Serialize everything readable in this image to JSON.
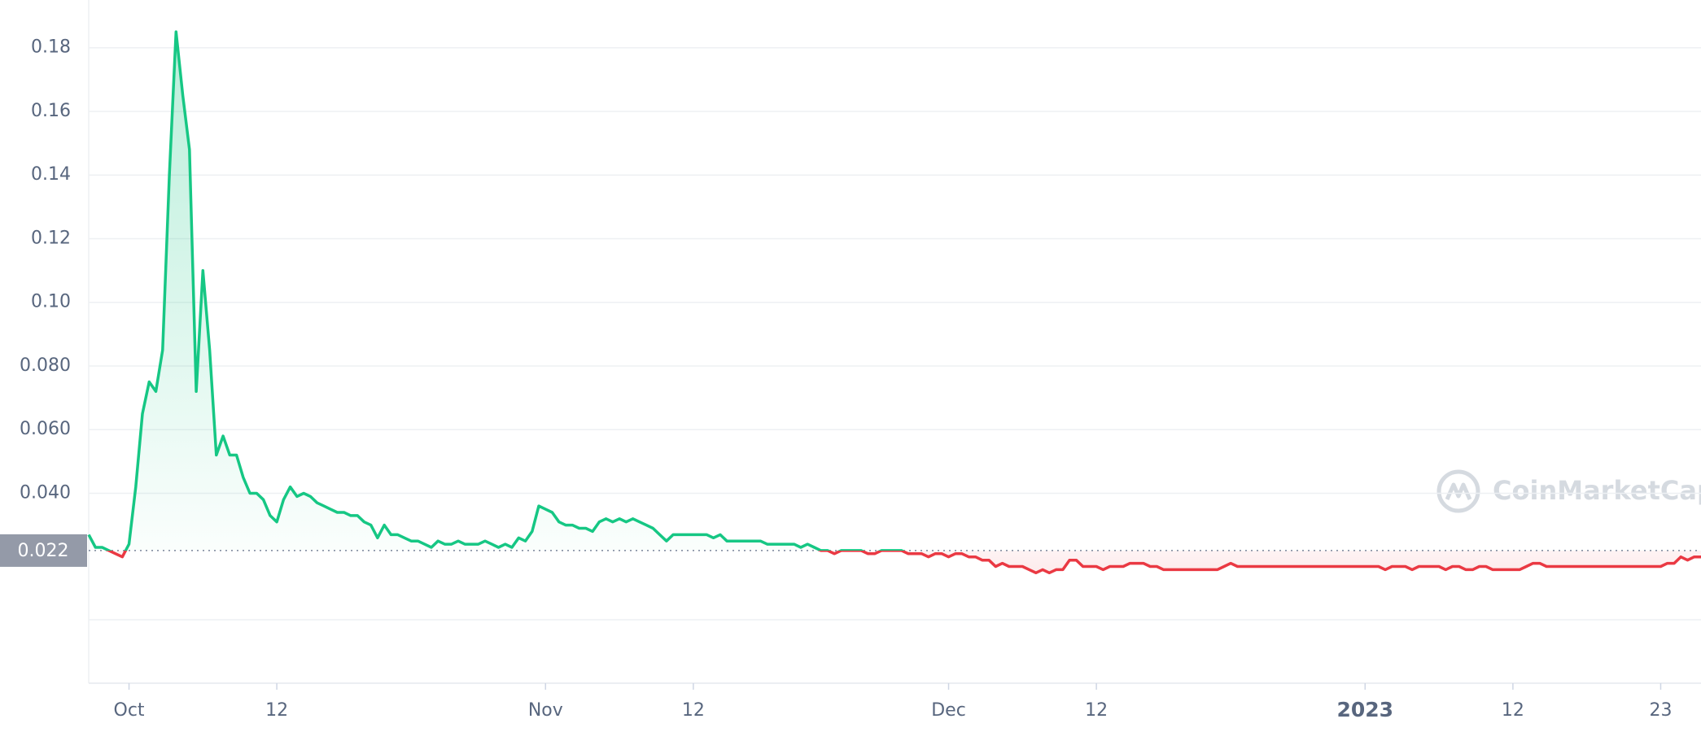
{
  "chart_data": {
    "type": "line",
    "up_color": "#16c784",
    "down_color": "#ea3943",
    "baseline": 0.022,
    "watermark": "CoinMarketCap",
    "xlim": [
      0,
      240
    ],
    "xticks": [
      {
        "value": 6,
        "label": "Oct"
      },
      {
        "value": 28,
        "label": "12"
      },
      {
        "value": 68,
        "label": "Nov"
      },
      {
        "value": 90,
        "label": "12"
      },
      {
        "value": 128,
        "label": "Dec"
      },
      {
        "value": 150,
        "label": "12"
      },
      {
        "value": 190,
        "label": "2023",
        "bold": true
      },
      {
        "value": 212,
        "label": "12"
      },
      {
        "value": 234,
        "label": "23"
      }
    ],
    "ylim": [
      0,
      0.195
    ],
    "yticks": [
      {
        "value": 0.04,
        "label": "0.040"
      },
      {
        "value": 0.06,
        "label": "0.060"
      },
      {
        "value": 0.08,
        "label": "0.080"
      },
      {
        "value": 0.1,
        "label": "0.10"
      },
      0.12,
      0.14,
      0.16,
      0.18
    ],
    "grid": true,
    "values": [
      0.027,
      0.023,
      0.023,
      0.022,
      0.021,
      0.02,
      0.024,
      0.042,
      0.065,
      0.075,
      0.072,
      0.085,
      0.14,
      0.185,
      0.165,
      0.148,
      0.072,
      0.11,
      0.085,
      0.052,
      0.058,
      0.052,
      0.052,
      0.045,
      0.04,
      0.04,
      0.038,
      0.033,
      0.031,
      0.038,
      0.042,
      0.039,
      0.04,
      0.039,
      0.037,
      0.036,
      0.035,
      0.034,
      0.034,
      0.033,
      0.033,
      0.031,
      0.03,
      0.026,
      0.03,
      0.027,
      0.027,
      0.026,
      0.025,
      0.025,
      0.024,
      0.023,
      0.025,
      0.024,
      0.024,
      0.025,
      0.024,
      0.024,
      0.024,
      0.025,
      0.024,
      0.023,
      0.024,
      0.023,
      0.026,
      0.025,
      0.028,
      0.036,
      0.035,
      0.034,
      0.031,
      0.03,
      0.03,
      0.029,
      0.029,
      0.028,
      0.031,
      0.032,
      0.031,
      0.032,
      0.031,
      0.032,
      0.031,
      0.03,
      0.029,
      0.027,
      0.025,
      0.027,
      0.027,
      0.027,
      0.027,
      0.027,
      0.027,
      0.026,
      0.027,
      0.025,
      0.025,
      0.025,
      0.025,
      0.025,
      0.025,
      0.024,
      0.024,
      0.024,
      0.024,
      0.024,
      0.023,
      0.024,
      0.023,
      0.022,
      0.022,
      0.021,
      0.022,
      0.022,
      0.022,
      0.022,
      0.021,
      0.021,
      0.022,
      0.022,
      0.022,
      0.022,
      0.021,
      0.021,
      0.021,
      0.02,
      0.021,
      0.021,
      0.02,
      0.021,
      0.021,
      0.02,
      0.02,
      0.019,
      0.019,
      0.017,
      0.018,
      0.017,
      0.017,
      0.017,
      0.016,
      0.015,
      0.016,
      0.015,
      0.016,
      0.016,
      0.019,
      0.019,
      0.017,
      0.017,
      0.017,
      0.016,
      0.017,
      0.017,
      0.017,
      0.018,
      0.018,
      0.018,
      0.017,
      0.017,
      0.016,
      0.016,
      0.016,
      0.016,
      0.016,
      0.016,
      0.016,
      0.016,
      0.016,
      0.017,
      0.018,
      0.017,
      0.017,
      0.017,
      0.017,
      0.017,
      0.017,
      0.017,
      0.017,
      0.017,
      0.017,
      0.017,
      0.017,
      0.017,
      0.017,
      0.017,
      0.017,
      0.017,
      0.017,
      0.017,
      0.017,
      0.017,
      0.017,
      0.016,
      0.017,
      0.017,
      0.017,
      0.016,
      0.017,
      0.017,
      0.017,
      0.017,
      0.016,
      0.017,
      0.017,
      0.016,
      0.016,
      0.017,
      0.017,
      0.016,
      0.016,
      0.016,
      0.016,
      0.016,
      0.017,
      0.018,
      0.018,
      0.017,
      0.017,
      0.017,
      0.017,
      0.017,
      0.017,
      0.017,
      0.017,
      0.017,
      0.017,
      0.017,
      0.017,
      0.017,
      0.017,
      0.017,
      0.017,
      0.017,
      0.017,
      0.018,
      0.018,
      0.02,
      0.019,
      0.02,
      0.02
    ]
  }
}
